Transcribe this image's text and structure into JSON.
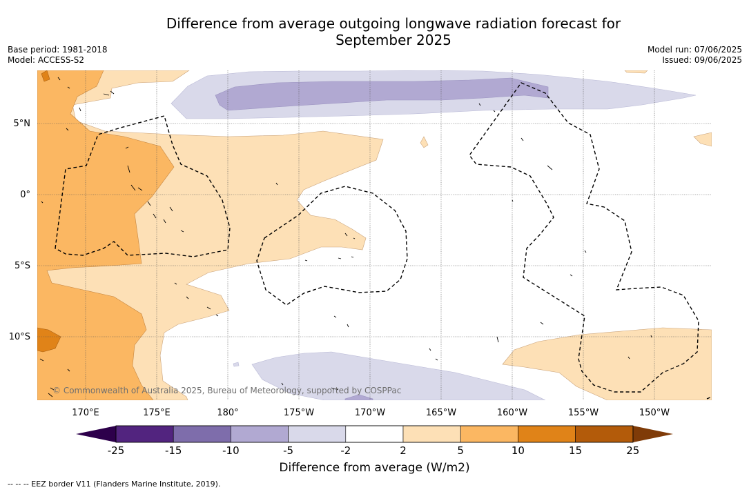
{
  "title": {
    "line1": "Difference from average outgoing longwave radiation forecast for",
    "line2": "September 2025"
  },
  "meta": {
    "base_period": "Base period: 1981-2018",
    "model": "Model: ACCESS-S2",
    "model_run": "Model run: 07/06/2025",
    "issued": "Issued: 09/06/2025"
  },
  "map": {
    "lon_ticks": [
      "170°E",
      "175°E",
      "180°",
      "175°W",
      "170°W",
      "165°W",
      "160°W",
      "155°W",
      "150°W"
    ],
    "lat_ticks": [
      "5°N",
      "0°",
      "5°S",
      "10°S"
    ],
    "copyright": "© Commonwealth of Australia 2025, Bureau of Meteorology, supported by COSPPac"
  },
  "colorbar": {
    "label": "Difference from average (W/m2)",
    "ticks": [
      "-25",
      "-15",
      "-10",
      "-5",
      "-2",
      "2",
      "5",
      "10",
      "15",
      "25"
    ],
    "colors": [
      "#52247f",
      "#7e6dab",
      "#b1a9d2",
      "#d9d9ea",
      "#ffffff",
      "#fde0b6",
      "#fbb762",
      "#e08318",
      "#b35b0a"
    ],
    "under_color": "#2d004b",
    "over_color": "#7f3b08"
  },
  "footnote": "--  --  -- EEZ border V11 (Flanders Marine Institute, 2019)."
}
